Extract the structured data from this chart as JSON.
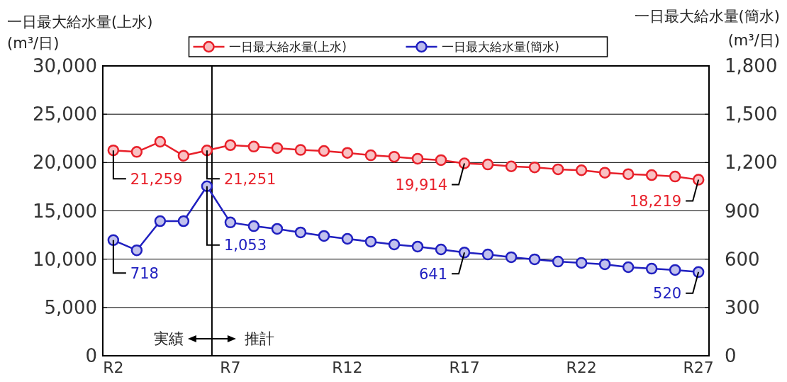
{
  "chart_data": {
    "type": "line",
    "ylabel": "一日最大給水量(上水)\n(m³/日)",
    "y2label": "一日最大給水量(簡水)\n(m³/日)",
    "categories": [
      "R2",
      null,
      null,
      null,
      null,
      "R7",
      null,
      null,
      null,
      null,
      "R12",
      null,
      null,
      null,
      null,
      "R17",
      null,
      null,
      null,
      null,
      "R22",
      null,
      null,
      null,
      null,
      "R27"
    ],
    "series": [
      {
        "name": "一日最大給水量(上水)",
        "color": "#e8202a",
        "values": [
          21259,
          21100,
          22150,
          20700,
          21251,
          21800,
          21650,
          21500,
          21300,
          21200,
          21000,
          20750,
          20600,
          20400,
          20250,
          19914,
          19800,
          19600,
          19500,
          19300,
          19200,
          18950,
          18800,
          18700,
          18550,
          18219
        ],
        "value_labels": [
          "21,259",
          null,
          null,
          null,
          "21,251",
          null,
          null,
          null,
          null,
          null,
          null,
          null,
          null,
          null,
          null,
          "19,914",
          null,
          null,
          null,
          null,
          null,
          null,
          null,
          null,
          null,
          "18,219"
        ]
      },
      {
        "name": "一日最大給水量(簡水)",
        "color": "#2020c0",
        "axis": "y2",
        "values": [
          718,
          655,
          836,
          836,
          1053,
          828,
          805,
          788,
          766,
          744,
          726,
          709,
          691,
          678,
          660,
          641,
          629,
          612,
          599,
          585,
          577,
          568,
          550,
          541,
          533,
          520
        ],
        "value_labels": [
          "718",
          null,
          null,
          null,
          "1,053",
          null,
          null,
          null,
          null,
          null,
          null,
          null,
          null,
          null,
          null,
          "641",
          null,
          null,
          null,
          null,
          null,
          null,
          null,
          null,
          null,
          "520"
        ]
      }
    ],
    "ylim": [
      0,
      30000
    ],
    "yticks": [
      {
        "value": 0,
        "label": "0"
      },
      {
        "value": 5000,
        "label": "5,000"
      },
      {
        "value": 10000,
        "label": "10,000"
      },
      {
        "value": 15000,
        "label": "15,000"
      },
      {
        "value": 20000,
        "label": "20,000"
      },
      {
        "value": 25000,
        "label": "25,000"
      },
      {
        "value": 30000,
        "label": "30,000"
      }
    ],
    "y2lim": [
      0,
      1800
    ],
    "y2ticks": [
      {
        "value": 0,
        "label": "0"
      },
      {
        "value": 300,
        "label": "300"
      },
      {
        "value": 600,
        "label": "600"
      },
      {
        "value": 900,
        "label": "900"
      },
      {
        "value": 1200,
        "label": "1,200"
      },
      {
        "value": 1500,
        "label": "1,500"
      },
      {
        "value": 1800,
        "label": "1,800"
      }
    ],
    "ref_lines": [
      {
        "axis": "x",
        "color": "#000000"
      }
    ],
    "annotations": [
      "実績",
      "推計"
    ],
    "grid": "y",
    "legend": "top",
    "marker": "circle",
    "line_style": "solid"
  }
}
